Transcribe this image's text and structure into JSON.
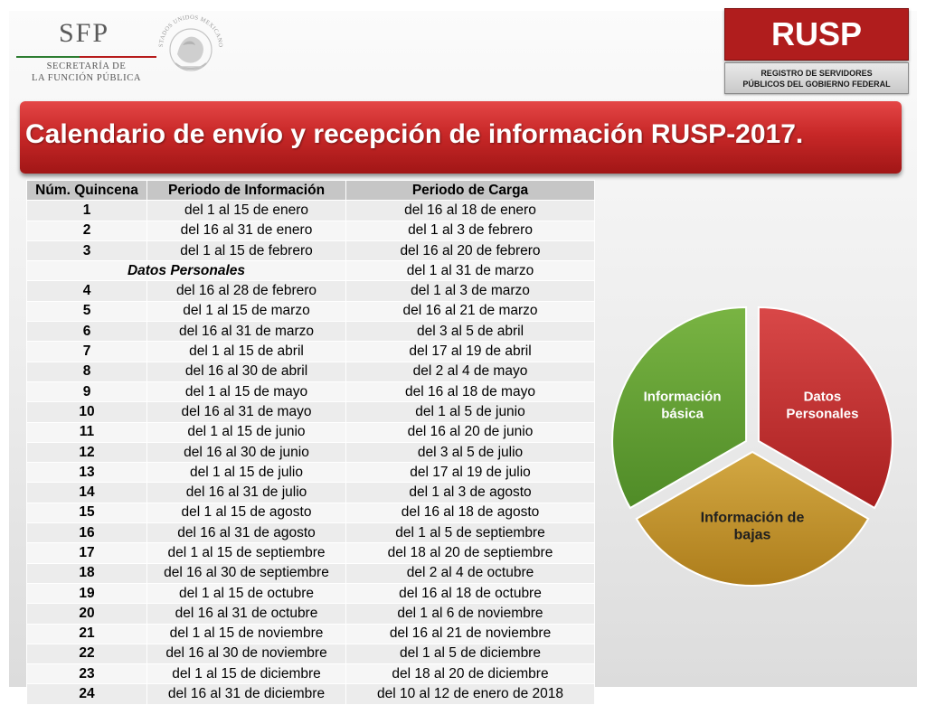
{
  "header": {
    "logo": {
      "mark": "SFP",
      "line1": "SECRETARÍA DE",
      "line2": "LA FUNCIÓN PÚBLICA"
    },
    "seal_text": "ESTADOS UNIDOS MEXICANOS",
    "badge": {
      "title": "RUSP",
      "subtitle_line1": "REGISTRO DE SERVIDORES",
      "subtitle_line2": "PÚBLICOS DEL GOBIERNO FEDERAL"
    }
  },
  "title": "Calendario de envío y recepción de información RUSP-2017.",
  "table": {
    "headers": [
      "Núm. Quincena",
      "Periodo de Información",
      "Periodo de Carga"
    ],
    "special_row": {
      "label": "Datos Personales",
      "carga": "del 1 al 31 de marzo"
    },
    "rows": [
      {
        "num": "1",
        "info": "del 1 al 15 de enero",
        "carga": "del 16 al 18 de enero"
      },
      {
        "num": "2",
        "info": "del 16 al 31 de enero",
        "carga": "del 1 al 3 de febrero"
      },
      {
        "num": "3",
        "info": "del 1 al 15 de febrero",
        "carga": "del 16 al 20 de febrero"
      },
      {
        "num": "4",
        "info": "del 16 al 28 de febrero",
        "carga": "del 1 al 3 de marzo"
      },
      {
        "num": "5",
        "info": "del 1 al 15 de marzo",
        "carga": "del 16 al 21 de marzo"
      },
      {
        "num": "6",
        "info": "del 16 al 31 de marzo",
        "carga": "del 3 al 5 de abril"
      },
      {
        "num": "7",
        "info": "del 1 al 15 de abril",
        "carga": "del 17 al 19 de abril"
      },
      {
        "num": "8",
        "info": "del 16 al 30 de abril",
        "carga": "del 2 al 4 de mayo"
      },
      {
        "num": "9",
        "info": "del 1 al 15 de mayo",
        "carga": "del 16 al 18 de mayo"
      },
      {
        "num": "10",
        "info": "del 16 al 31 de mayo",
        "carga": "del 1 al 5 de junio"
      },
      {
        "num": "11",
        "info": "del 1 al 15 de junio",
        "carga": "del 16 al 20 de junio"
      },
      {
        "num": "12",
        "info": "del 16 al 30 de junio",
        "carga": "del 3 al 5 de julio"
      },
      {
        "num": "13",
        "info": "del 1 al 15 de julio",
        "carga": "del 17 al 19 de julio"
      },
      {
        "num": "14",
        "info": "del 16 al 31 de julio",
        "carga": "del 1 al 3 de agosto"
      },
      {
        "num": "15",
        "info": "del 1 al 15 de agosto",
        "carga": "del 16 al 18 de agosto"
      },
      {
        "num": "16",
        "info": "del 16 al 31 de agosto",
        "carga": "del 1 al 5 de septiembre"
      },
      {
        "num": "17",
        "info": "del 1 al 15 de septiembre",
        "carga": "del 18 al 20 de septiembre"
      },
      {
        "num": "18",
        "info": "del 16 al 30 de septiembre",
        "carga": "del 2 al 4 de octubre"
      },
      {
        "num": "19",
        "info": "del 1 al 15 de octubre",
        "carga": "del 16 al 18 de octubre"
      },
      {
        "num": "20",
        "info": "del 16 al 31 de octubre",
        "carga": "del 1 al 6 de noviembre"
      },
      {
        "num": "21",
        "info": "del 1 al 15 de noviembre",
        "carga": "del 16 al 21 de noviembre"
      },
      {
        "num": "22",
        "info": "del 16 al 30 de noviembre",
        "carga": "del 1 al 5 de diciembre"
      },
      {
        "num": "23",
        "info": "del 1 al 15 de diciembre",
        "carga": "del 18 al 20 de diciembre"
      },
      {
        "num": "24",
        "info": "del 16 al 31 de diciembre",
        "carga": "del 10 al 12 de enero de 2018"
      }
    ]
  },
  "pie": {
    "segments": [
      {
        "label_line1": "Datos",
        "label_line2": "Personales",
        "color": "#c83030",
        "value": 1
      },
      {
        "label_line1": "Información de",
        "label_line2": "bajas",
        "color": "#c79a2a",
        "value": 1
      },
      {
        "label_line1": "Información",
        "label_line2": "básica",
        "color": "#6aa637",
        "value": 1
      }
    ]
  }
}
